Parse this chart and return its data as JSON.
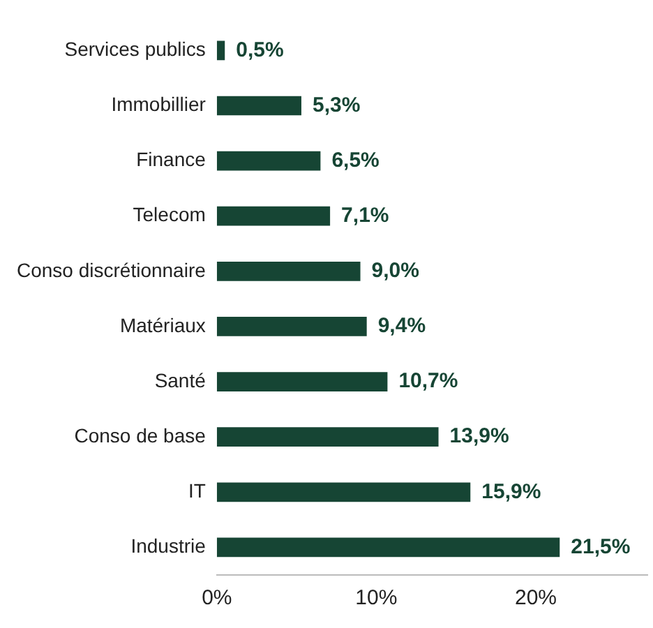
{
  "chart_data": {
    "type": "bar",
    "orientation": "horizontal",
    "categories": [
      "Services publics",
      "Immobillier",
      "Finance",
      "Telecom",
      "Conso discrétionnaire",
      "Matériaux",
      "Santé",
      "Conso de base",
      "IT",
      "Industrie"
    ],
    "values": [
      0.5,
      5.3,
      6.5,
      7.1,
      9.0,
      9.4,
      10.7,
      13.9,
      15.9,
      21.5
    ],
    "value_labels": [
      "0,5%",
      "5,3%",
      "6,5%",
      "7,1%",
      "9,0%",
      "9,4%",
      "10,7%",
      "13,9%",
      "15,9%",
      "21,5%"
    ],
    "color": "#164534",
    "xlim": [
      0,
      27
    ],
    "xticks": [
      {
        "value": 0,
        "label": "0%"
      },
      {
        "value": 10,
        "label": "10%"
      },
      {
        "value": 20,
        "label": "20%"
      }
    ],
    "grid": false,
    "legend": false
  }
}
